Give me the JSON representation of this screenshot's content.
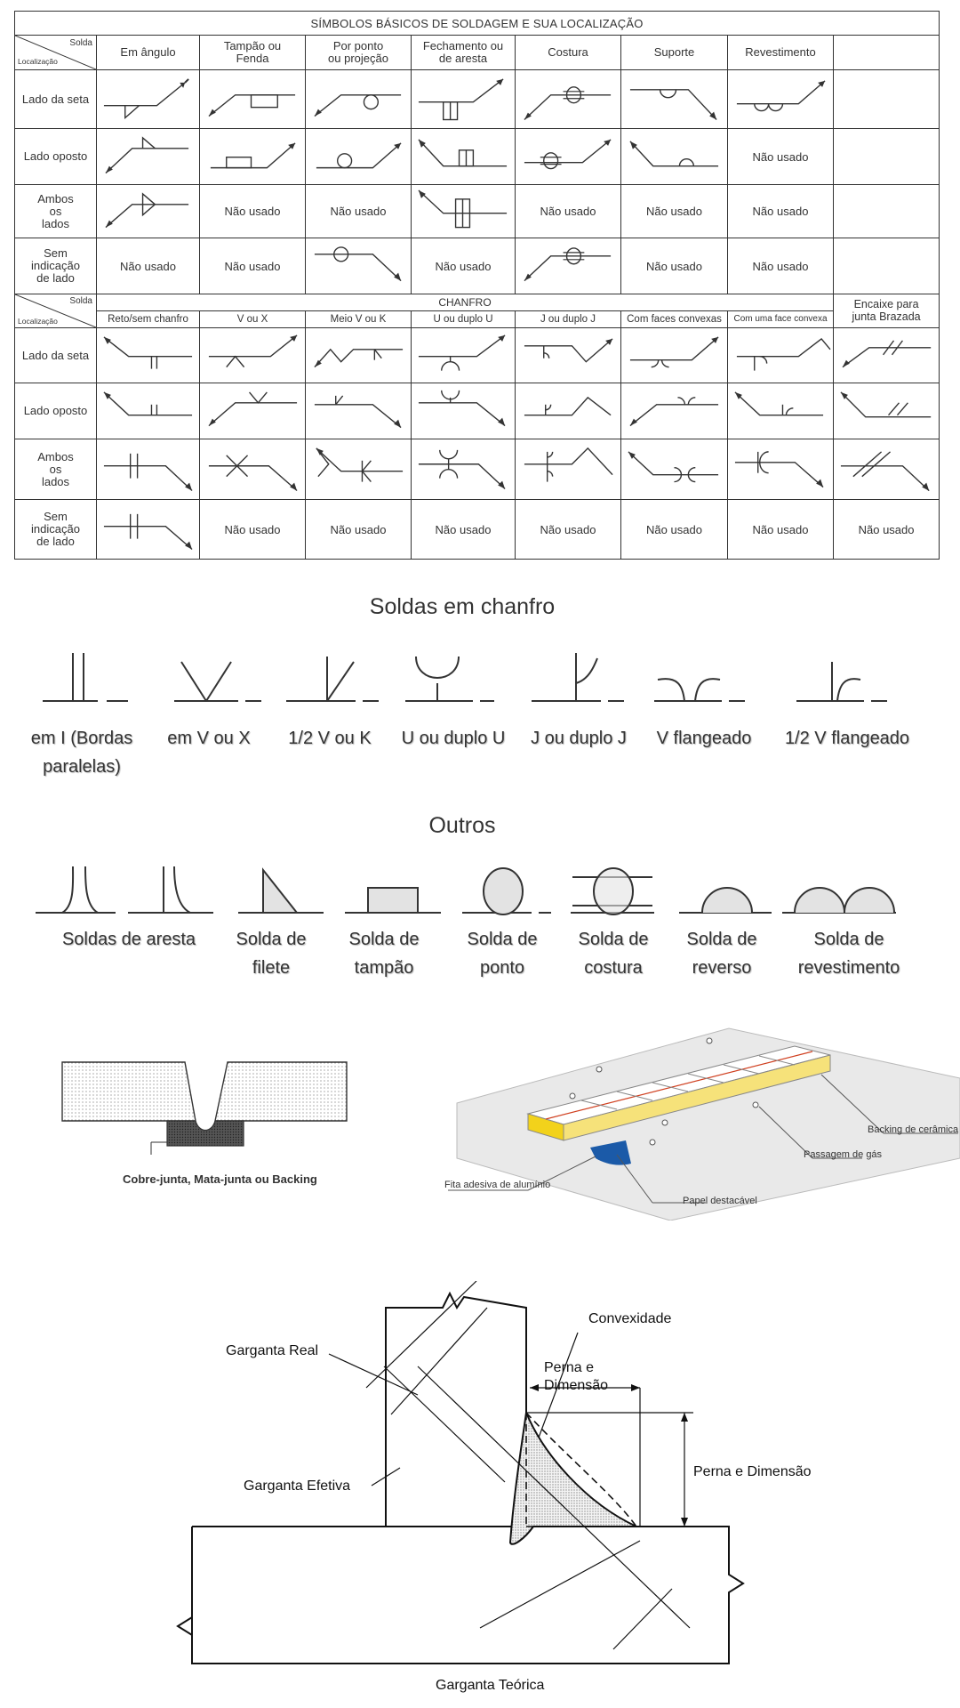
{
  "table": {
    "title": "SÍMBOLOS BÁSICOS DE SOLDAGEM E SUA LOCALIZAÇÃO",
    "corner_solda": "Solda",
    "corner_localizacao": "Localização",
    "top_headers": [
      "Em ângulo",
      "Tampão ou\nFenda",
      "Por ponto\nou  projeção",
      "Fechamento ou\nde aresta",
      "Costura",
      "Suporte",
      "Revestimento"
    ],
    "top_rows": [
      {
        "label": "Lado da seta",
        "cells": [
          "",
          "",
          "",
          "",
          "",
          "",
          ""
        ]
      },
      {
        "label": "Lado oposto",
        "cells": [
          "",
          "",
          "",
          "",
          "",
          "",
          "Não usado"
        ]
      },
      {
        "label": "Ambos\nos\nlados",
        "cells": [
          "",
          "Não usado",
          "Não usado",
          "",
          "Não usado",
          "Não usado",
          "Não usado"
        ]
      },
      {
        "label": "Sem\nindicação\nde lado",
        "cells": [
          "Não usado",
          "Não usado",
          "",
          "Não usado",
          "",
          "Não usado",
          "Não usado"
        ]
      }
    ],
    "chanfro_label": "CHANFRO",
    "encaixe_label": "Encaixe para\njunta Brazada",
    "bottom_headers": [
      "Reto/sem chanfro",
      "V ou X",
      "Meio V ou K",
      "U ou duplo U",
      "J ou duplo J",
      "Com faces convexas",
      "Com uma face convexa"
    ],
    "bottom_rows": [
      {
        "label": "Lado da seta"
      },
      {
        "label": "Lado oposto"
      },
      {
        "label": "Ambos\nos\nlados"
      },
      {
        "label": "Sem\nindicação\nde lado",
        "cells": [
          "",
          "Não usado",
          "Não usado",
          "Não usado",
          "Não usado",
          "Não usado",
          "Não usado",
          "Não usado"
        ]
      }
    ]
  },
  "chanfro_section": {
    "title": "Soldas em chanfro",
    "labels": [
      "em I (Bordas\nparalelas)",
      "em V ou X",
      "1/2 V ou K",
      "U ou duplo U",
      "J ou duplo J",
      "V flangeado",
      "1/2 V flangeado"
    ]
  },
  "outros_section": {
    "title": "Outros",
    "labels": [
      "Soldas de aresta",
      "Solda de\nfilete",
      "Solda de\ntampão",
      "Solda de\nponto",
      "Solda de\ncostura",
      "Solda de\nreverso",
      "Solda de\nrevestimento"
    ]
  },
  "backing": {
    "left_caption": "Cobre-junta, Mata-junta ou Backing",
    "right_labels": [
      "Backing de cerâmica",
      "Passagem de gás",
      "Fita adesiva de alumínio",
      "Papel destacável"
    ]
  },
  "fillet": {
    "labels": [
      "Convexidade",
      "Garganta Real",
      "Perna e\nDimensão",
      "Perna e Dimensão",
      "Garganta Efetiva",
      "Garganta Teórica"
    ]
  },
  "colors": {
    "ink": "#333333",
    "ceramic_yellow": "#f2d21b",
    "tape_blue": "#1b5aa8"
  }
}
